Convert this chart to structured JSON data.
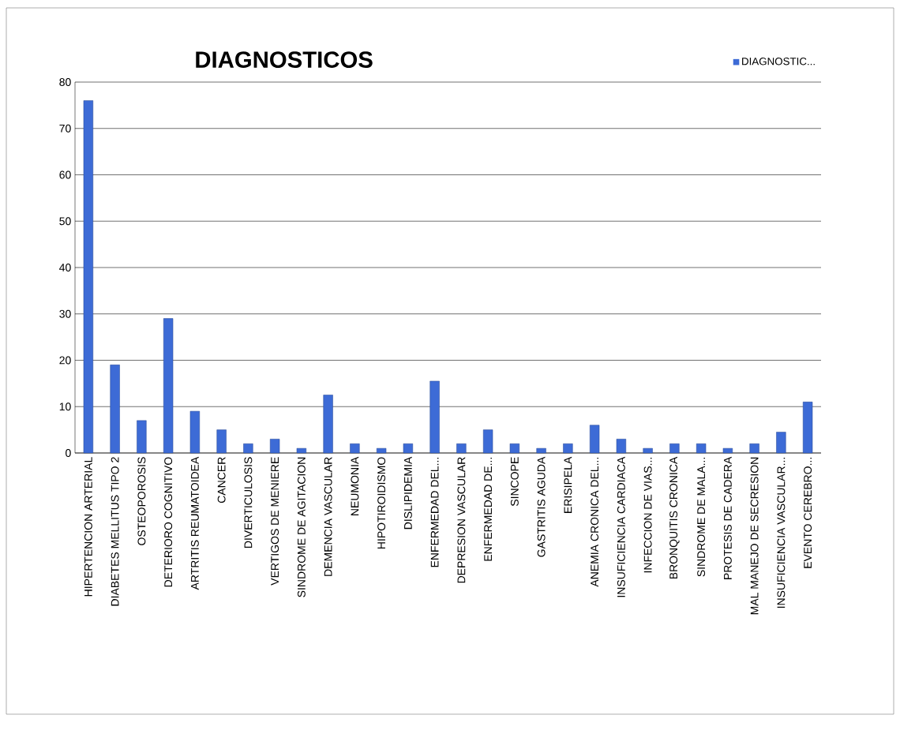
{
  "chart_data": {
    "type": "bar",
    "title": "DIAGNOSTICOS",
    "categories": [
      "HIPERTENCION ARTERIAL",
      "DIABETES MELLITUS TIPO 2",
      "OSTEOPOROSIS",
      "DETERIORO COGNITIVO",
      "ARTRITIS REUMATOIDEA",
      "CANCER",
      "DIVERTICULOSIS",
      "VERTIGOS DE MENIERE",
      "SINDROME DE AGITACION",
      "DEMENCIA VASCULAR",
      "NEUMONIA",
      "HIPOTIROIDISMO",
      "DISLIPIDEMIA",
      "ENFERMEDAD DEL...",
      "DEPRESION VASCULAR",
      "ENFERMEDAD DE...",
      "SINCOPE",
      "GASTRITIS AGUDA",
      "ERISIPELA",
      "ANEMIA CRONICA DEL...",
      "INSUFICIENCIA CARDIACA",
      "INFECCION DE VIAS...",
      "BRONQUITIS CRONICA",
      "SINDROME DE MALA...",
      "PROTESIS DE CADERA",
      "MAL MANEJO DE SECRESION",
      "INSUFICIENCIA VASCULAR...",
      "EVENTO CEREBRO..."
    ],
    "series": [
      {
        "name": "DIAGNOSTIC...",
        "color": "#3d6bd6",
        "values": [
          76,
          19,
          7,
          29,
          9,
          5,
          2,
          3,
          1,
          12.5,
          2,
          1,
          2,
          15.5,
          2,
          5,
          2,
          1,
          2,
          6,
          3,
          1,
          2,
          2,
          1,
          2,
          4.5,
          11
        ]
      }
    ],
    "ylim": [
      0,
      80
    ],
    "yticks": [
      0,
      10,
      20,
      30,
      40,
      50,
      60,
      70,
      80
    ],
    "grid": "y",
    "legend": "top right"
  }
}
